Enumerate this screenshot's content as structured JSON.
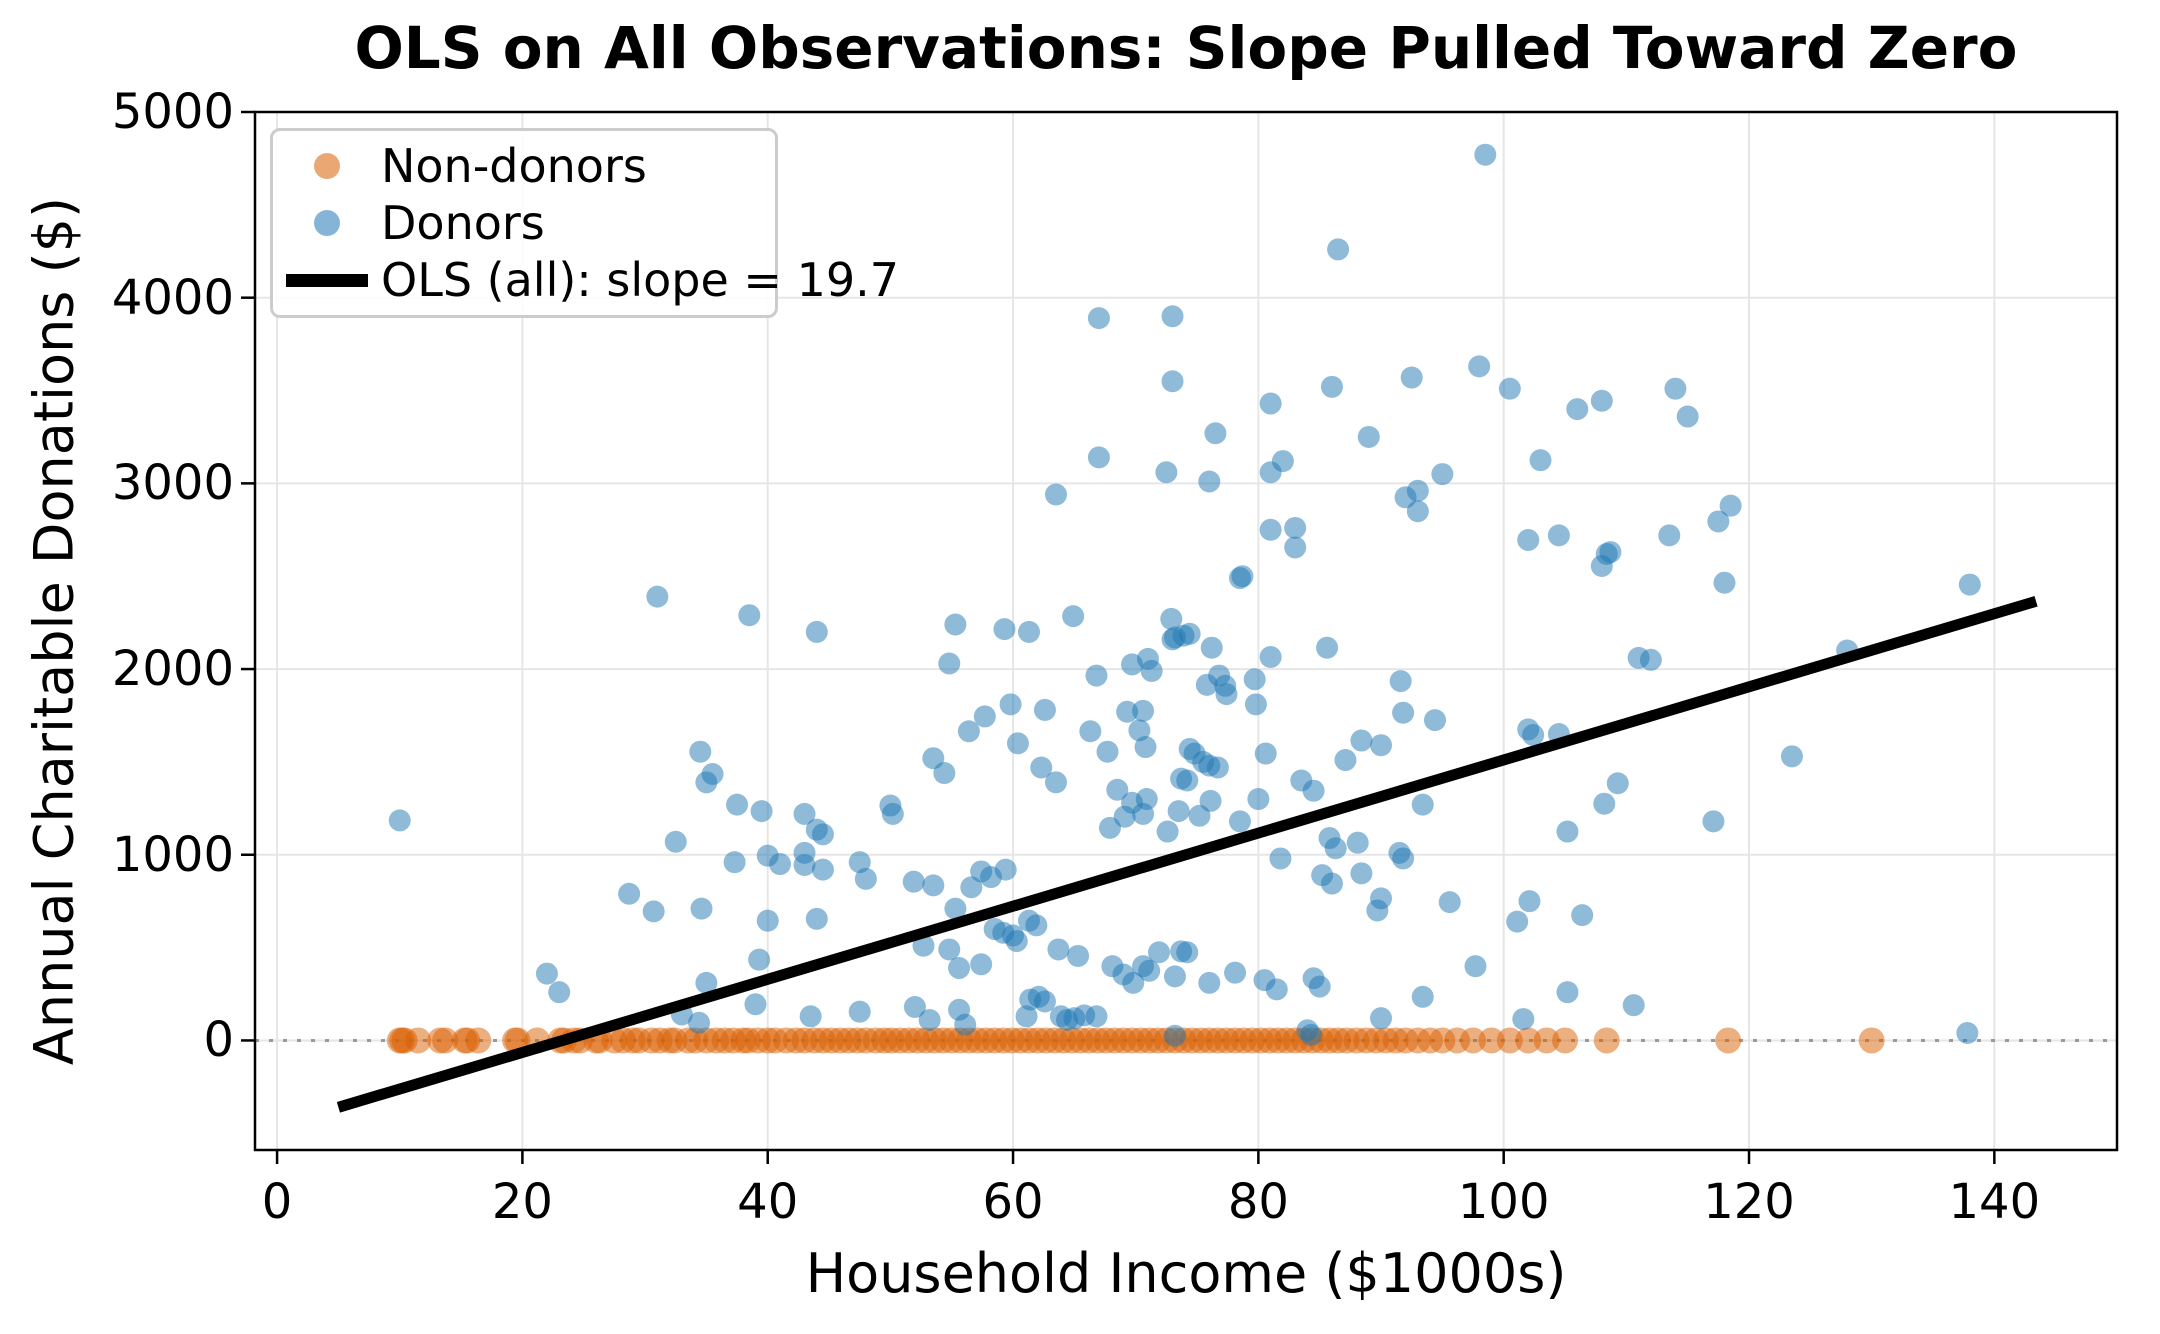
{
  "title": "OLS on All Observations: Slope Pulled Toward Zero",
  "colors": {
    "background": "#ffffff",
    "donor": "#1f77b4",
    "non_donor": "#d95f02",
    "ols_line": "#000000",
    "grid": "#e6e6e6",
    "zero_line": "#999999",
    "spine": "#000000",
    "legend_border": "#cccccc"
  },
  "legend": {
    "non_donors": "Non-donors",
    "donors": "Donors",
    "ols": "OLS (all): slope = 19.7"
  },
  "chart_data": {
    "type": "scatter",
    "title": "OLS on All Observations: Slope Pulled Toward Zero",
    "xlabel": "Household Income ($1000s)",
    "ylabel": "Annual Charitable Donations ($)",
    "xlim": [
      -1.8,
      150
    ],
    "ylim": [
      -590,
      5000
    ],
    "xticks": [
      0,
      20,
      40,
      60,
      80,
      100,
      120,
      140
    ],
    "yticks": [
      0,
      1000,
      2000,
      3000,
      4000,
      5000
    ],
    "grid": true,
    "legend_position": "upper left",
    "zero_reference_line": {
      "y": 0,
      "style": "dotted",
      "color": "#999999"
    },
    "ols_line": {
      "label": "OLS (all): slope = 19.7",
      "slope": 19.7,
      "intercept": -458,
      "x_start": 5,
      "y_start": -360,
      "x_end": 143.4,
      "y_end": 2365
    },
    "series": [
      {
        "name": "Non-donors",
        "y": 0,
        "x": [
          10.0,
          10.2,
          10.4,
          11.5,
          13.3,
          13.7,
          15.3,
          15.5,
          16.4,
          19.4,
          19.6,
          21.2,
          23.1,
          23.4,
          24.2,
          24.7,
          26.0,
          26.3,
          27.5,
          28.2,
          29.0,
          29.5,
          30.5,
          31.2,
          32.0,
          32.4,
          33.5,
          34.1,
          35.0,
          35.8,
          36.5,
          37.2,
          38.0,
          38.4,
          39.2,
          40.0,
          40.6,
          41.5,
          42.3,
          43.0,
          43.8,
          44.5,
          45.2,
          45.9,
          46.6,
          47.3,
          48.0,
          48.8,
          49.5,
          50.1,
          50.8,
          51.5,
          52.2,
          52.9,
          53.6,
          54.3,
          55.0,
          55.7,
          56.4,
          57.1,
          57.8,
          58.5,
          59.2,
          59.9,
          60.6,
          61.3,
          62.0,
          62.7,
          63.4,
          64.1,
          64.8,
          65.5,
          66.2,
          66.9,
          67.6,
          68.3,
          69.0,
          69.7,
          70.4,
          71.1,
          71.8,
          72.5,
          73.2,
          73.9,
          74.6,
          75.3,
          76.0,
          76.7,
          77.4,
          78.1,
          78.8,
          79.5,
          80.2,
          80.9,
          81.6,
          82.3,
          83.0,
          83.7,
          84.4,
          85.1,
          85.8,
          86.5,
          87.2,
          88.0,
          88.8,
          89.6,
          90.4,
          91.2,
          92.0,
          93.0,
          94.0,
          95.0,
          96.2,
          97.5,
          99.0,
          100.5,
          102.0,
          103.5,
          105.0,
          108.4,
          118.3,
          130.0
        ]
      },
      {
        "name": "Donors",
        "points": [
          [
            10,
            1185
          ],
          [
            22,
            360
          ],
          [
            23,
            260
          ],
          [
            28.7,
            790
          ],
          [
            30.7,
            695
          ],
          [
            31,
            2390
          ],
          [
            32.5,
            1070
          ],
          [
            33,
            140
          ],
          [
            34.4,
            95
          ],
          [
            34.5,
            1555
          ],
          [
            34.6,
            710
          ],
          [
            35,
            1390
          ],
          [
            35,
            310
          ],
          [
            35.5,
            1435
          ],
          [
            37.3,
            960
          ],
          [
            37.5,
            1270
          ],
          [
            38.5,
            2290
          ],
          [
            39,
            195
          ],
          [
            39.3,
            435
          ],
          [
            39.5,
            1235
          ],
          [
            40,
            995
          ],
          [
            40,
            645
          ],
          [
            41,
            950
          ],
          [
            43,
            1220
          ],
          [
            43,
            1010
          ],
          [
            43,
            945
          ],
          [
            43.5,
            130
          ],
          [
            44,
            2200
          ],
          [
            44,
            1135
          ],
          [
            44,
            655
          ],
          [
            44.5,
            1110
          ],
          [
            44.5,
            920
          ],
          [
            47.5,
            960
          ],
          [
            47.5,
            155
          ],
          [
            48,
            870
          ],
          [
            50,
            1265
          ],
          [
            50.2,
            1220
          ],
          [
            51.9,
            855
          ],
          [
            52,
            180
          ],
          [
            52.7,
            510
          ],
          [
            53.2,
            110
          ],
          [
            53.5,
            1520
          ],
          [
            53.5,
            835
          ],
          [
            54.4,
            1440
          ],
          [
            54.8,
            2030
          ],
          [
            54.8,
            490
          ],
          [
            55.3,
            2240
          ],
          [
            55.3,
            710
          ],
          [
            55.6,
            390
          ],
          [
            55.6,
            165
          ],
          [
            56.1,
            85
          ],
          [
            56.4,
            1665
          ],
          [
            56.6,
            825
          ],
          [
            57.4,
            910
          ],
          [
            57.4,
            410
          ],
          [
            57.7,
            1745
          ],
          [
            58.2,
            880
          ],
          [
            58.5,
            600
          ],
          [
            59.2,
            580
          ],
          [
            59.3,
            2215
          ],
          [
            59.4,
            920
          ],
          [
            59.8,
            1810
          ],
          [
            60,
            565
          ],
          [
            60.3,
            535
          ],
          [
            60.4,
            1600
          ],
          [
            61.1,
            130
          ],
          [
            61.3,
            2200
          ],
          [
            61.3,
            645
          ],
          [
            61.4,
            220
          ],
          [
            61.9,
            620
          ],
          [
            62.1,
            235
          ],
          [
            62.3,
            1470
          ],
          [
            62.6,
            1780
          ],
          [
            62.6,
            210
          ],
          [
            63.5,
            2940
          ],
          [
            63.5,
            1390
          ],
          [
            63.7,
            490
          ],
          [
            63.9,
            130
          ],
          [
            64.4,
            110
          ],
          [
            64.9,
            2285
          ],
          [
            65,
            120
          ],
          [
            65.3,
            455
          ],
          [
            65.8,
            135
          ],
          [
            66.3,
            1665
          ],
          [
            66.8,
            1965
          ],
          [
            66.8,
            130
          ],
          [
            67,
            3890
          ],
          [
            67,
            3140
          ],
          [
            67.7,
            1555
          ],
          [
            67.9,
            1145
          ],
          [
            68.1,
            400
          ],
          [
            68.5,
            1350
          ],
          [
            69,
            355
          ],
          [
            69.1,
            1205
          ],
          [
            69.3,
            1770
          ],
          [
            69.7,
            2025
          ],
          [
            69.7,
            1280
          ],
          [
            69.8,
            310
          ],
          [
            70.3,
            1670
          ],
          [
            70.6,
            1775
          ],
          [
            70.6,
            1220
          ],
          [
            70.6,
            400
          ],
          [
            70.8,
            1580
          ],
          [
            70.9,
            1300
          ],
          [
            71,
            2055
          ],
          [
            71.1,
            375
          ],
          [
            71.3,
            1990
          ],
          [
            71.9,
            475
          ],
          [
            72.5,
            3060
          ],
          [
            72.6,
            1125
          ],
          [
            72.9,
            2270
          ],
          [
            73,
            3900
          ],
          [
            73,
            3550
          ],
          [
            73,
            2160
          ],
          [
            73.2,
            2170
          ],
          [
            73.2,
            345
          ],
          [
            73.2,
            25
          ],
          [
            73.5,
            1235
          ],
          [
            73.7,
            1410
          ],
          [
            73.7,
            480
          ],
          [
            73.9,
            2180
          ],
          [
            74.2,
            1400
          ],
          [
            74.2,
            475
          ],
          [
            74.4,
            2190
          ],
          [
            74.4,
            1570
          ],
          [
            74.8,
            1545
          ],
          [
            75.2,
            1210
          ],
          [
            75.5,
            1500
          ],
          [
            75.8,
            1915
          ],
          [
            76,
            3010
          ],
          [
            76,
            1480
          ],
          [
            76,
            310
          ],
          [
            76.1,
            1290
          ],
          [
            76.2,
            2115
          ],
          [
            76.5,
            3270
          ],
          [
            76.7,
            1470
          ],
          [
            76.8,
            1965
          ],
          [
            77.3,
            1910
          ],
          [
            77.4,
            1865
          ],
          [
            78.1,
            365
          ],
          [
            78.5,
            2490
          ],
          [
            78.7,
            2500
          ],
          [
            78.5,
            1180
          ],
          [
            79.7,
            1945
          ],
          [
            79.8,
            1810
          ],
          [
            80,
            1300
          ],
          [
            80.5,
            325
          ],
          [
            80.6,
            1545
          ],
          [
            81,
            3430
          ],
          [
            81,
            3060
          ],
          [
            81,
            2750
          ],
          [
            81,
            2065
          ],
          [
            81.5,
            275
          ],
          [
            81.8,
            980
          ],
          [
            82,
            3120
          ],
          [
            83,
            2760
          ],
          [
            83,
            2655
          ],
          [
            83.5,
            1400
          ],
          [
            84,
            55
          ],
          [
            84.3,
            30
          ],
          [
            84.5,
            1345
          ],
          [
            84.5,
            335
          ],
          [
            85,
            290
          ],
          [
            85.2,
            890
          ],
          [
            85.6,
            2115
          ],
          [
            85.8,
            1090
          ],
          [
            86,
            3520
          ],
          [
            86,
            845
          ],
          [
            86.3,
            1035
          ],
          [
            86.5,
            4260
          ],
          [
            87.1,
            1510
          ],
          [
            88.1,
            1065
          ],
          [
            88.4,
            1615
          ],
          [
            88.4,
            900
          ],
          [
            89,
            3250
          ],
          [
            89.7,
            700
          ],
          [
            90,
            1590
          ],
          [
            90,
            765
          ],
          [
            90,
            120
          ],
          [
            91.5,
            1010
          ],
          [
            91.6,
            1935
          ],
          [
            91.8,
            1765
          ],
          [
            91.8,
            980
          ],
          [
            92,
            2925
          ],
          [
            92.5,
            3570
          ],
          [
            93,
            2960
          ],
          [
            93,
            2850
          ],
          [
            93.4,
            1270
          ],
          [
            93.4,
            235
          ],
          [
            94.4,
            1725
          ],
          [
            95,
            3050
          ],
          [
            95.6,
            745
          ],
          [
            97.7,
            400
          ],
          [
            98,
            3630
          ],
          [
            98.5,
            4770
          ],
          [
            100.5,
            3510
          ],
          [
            101.1,
            640
          ],
          [
            101.6,
            115
          ],
          [
            102,
            2695
          ],
          [
            102,
            1675
          ],
          [
            102.1,
            750
          ],
          [
            102.4,
            1645
          ],
          [
            103,
            3125
          ],
          [
            104.5,
            2720
          ],
          [
            104.5,
            1650
          ],
          [
            105.2,
            1125
          ],
          [
            105.2,
            260
          ],
          [
            106,
            3400
          ],
          [
            106.4,
            675
          ],
          [
            108,
            3445
          ],
          [
            108,
            2555
          ],
          [
            108.2,
            1275
          ],
          [
            108.4,
            2620
          ],
          [
            108.7,
            2630
          ],
          [
            109.3,
            1385
          ],
          [
            110.6,
            190
          ],
          [
            111,
            2060
          ],
          [
            112,
            2050
          ],
          [
            113.5,
            2720
          ],
          [
            114,
            3510
          ],
          [
            115,
            3360
          ],
          [
            117.1,
            1180
          ],
          [
            117.5,
            2795
          ],
          [
            118,
            2465
          ],
          [
            118.5,
            2880
          ],
          [
            123.5,
            1530
          ],
          [
            128,
            2100
          ],
          [
            137.8,
            40
          ],
          [
            138,
            2455
          ]
        ]
      }
    ]
  }
}
